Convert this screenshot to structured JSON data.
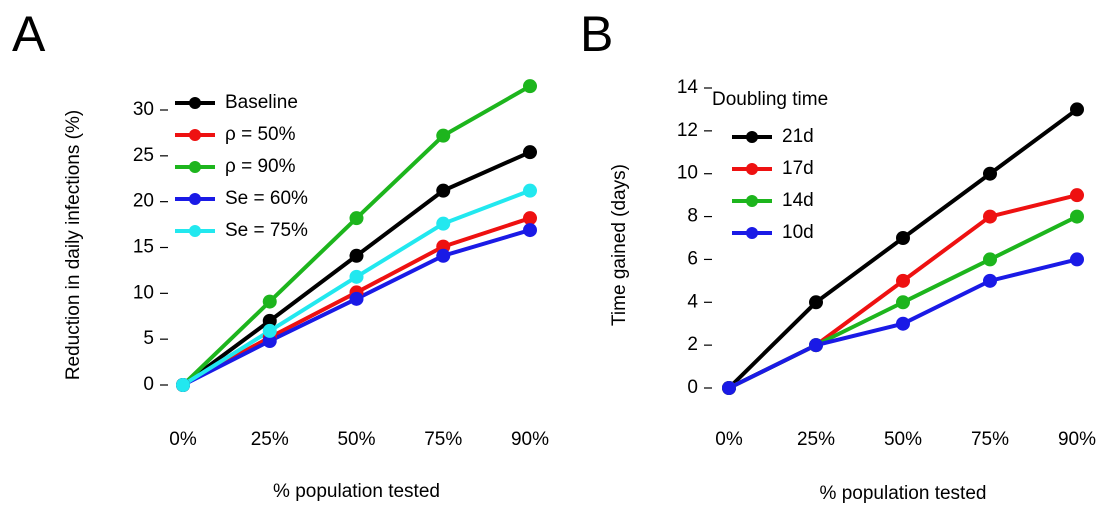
{
  "chart_data": [
    {
      "type": "line",
      "title": "A",
      "x_label": "% population tested",
      "y_label": "Reduction in daily infections (%)",
      "categories": [
        "0%",
        "25%",
        "50%",
        "75%",
        "90%"
      ],
      "ylim": [
        0,
        33
      ],
      "yticks": [
        0,
        5,
        10,
        15,
        20,
        25,
        30
      ],
      "series": [
        {
          "name": "Baseline",
          "color": "#000000",
          "values": [
            0,
            7,
            14.1,
            21.2,
            25.4
          ]
        },
        {
          "name": "ρ = 50%",
          "color": "#ee1111",
          "values": [
            0,
            5.2,
            10.1,
            15.1,
            18.2
          ]
        },
        {
          "name": "ρ = 90%",
          "color": "#1db51d",
          "values": [
            0,
            9.1,
            18.2,
            27.2,
            32.6
          ]
        },
        {
          "name": "Se = 60%",
          "color": "#1a1ae6",
          "values": [
            0,
            4.8,
            9.4,
            14.1,
            16.9
          ]
        },
        {
          "name": "Se = 75%",
          "color": "#22e8ef",
          "values": [
            0,
            5.9,
            11.8,
            17.6,
            21.2
          ]
        }
      ]
    },
    {
      "type": "line",
      "title": "B",
      "x_label": "% population tested",
      "y_label": "Time gained (days)",
      "legend_title": "Doubling time",
      "categories": [
        "0%",
        "25%",
        "50%",
        "75%",
        "90%"
      ],
      "ylim": [
        0,
        14
      ],
      "yticks": [
        0,
        2,
        4,
        6,
        8,
        10,
        12,
        14
      ],
      "series": [
        {
          "name": "21d",
          "color": "#000000",
          "values": [
            0,
            4,
            7,
            10,
            13
          ]
        },
        {
          "name": "17d",
          "color": "#ee1111",
          "values": [
            0,
            2,
            5,
            8,
            9
          ]
        },
        {
          "name": "14d",
          "color": "#1db51d",
          "values": [
            0,
            2,
            4,
            6,
            8
          ]
        },
        {
          "name": "10d",
          "color": "#1a1ae6",
          "values": [
            0,
            2,
            3,
            5,
            6
          ]
        }
      ]
    }
  ]
}
